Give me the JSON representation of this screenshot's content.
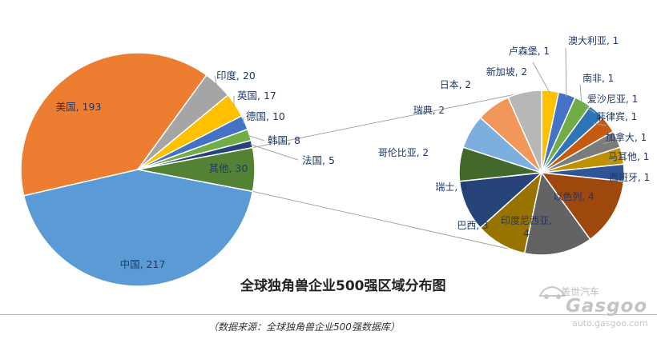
{
  "chart_data": [
    {
      "type": "pie",
      "title": "全球独角兽企业500强区域分布图",
      "labels": [
        "中国",
        "美国",
        "印度",
        "英国",
        "德国",
        "韩国",
        "法国",
        "其他"
      ],
      "values": [
        217,
        193,
        20,
        17,
        10,
        8,
        5,
        30
      ],
      "colors": [
        "#5b9bd5",
        "#ed7d31",
        "#a5a5a5",
        "#ffc000",
        "#4472c4",
        "#70ad47",
        "#264478",
        "#548235"
      ],
      "label_text": [
        "中国, 217",
        "美国, 193",
        "印度, 20",
        "英国, 17",
        "德国, 10",
        "韩国, 8",
        "法国, 5",
        "其他, 30"
      ]
    },
    {
      "type": "pie",
      "title": "",
      "labels": [
        "卢森堡",
        "澳大利亚",
        "南非",
        "爱沙尼亚",
        "菲律宾",
        "加拿大",
        "马耳他",
        "西班牙",
        "以色列",
        "印度尼西亚",
        "巴西",
        "瑞士",
        "哥伦比亚",
        "瑞典",
        "日本",
        "新加坡"
      ],
      "values": [
        1,
        1,
        1,
        1,
        1,
        1,
        1,
        1,
        4,
        4,
        3,
        3,
        2,
        2,
        2,
        2
      ],
      "colors": [
        "#ffc000",
        "#4472c4",
        "#70ad47",
        "#2e75b6",
        "#c55a11",
        "#7b7b7b",
        "#bf9000",
        "#2f5597",
        "#9e480e",
        "#636363",
        "#997300",
        "#264478",
        "#43682b",
        "#7cafdd",
        "#f1975a",
        "#b7b7b7"
      ],
      "label_text": [
        "卢森堡, 1",
        "澳大利亚, 1",
        "南非, 1",
        "爱沙尼亚, 1",
        "菲律宾, 1",
        "加拿大, 1",
        "马耳他, 1",
        "西班牙, 1",
        "以色列, 4",
        "印度尼西亚, 4",
        "巴西, 3",
        "瑞士, 3",
        "哥伦比亚, 2",
        "瑞典, 2",
        "日本, 2",
        "新加坡, 2"
      ]
    }
  ],
  "title": "全球独角兽企业500强区域分布图",
  "source": "（数据来源：全球独角兽企业500强数据库）",
  "watermark": {
    "brand": "盖世汽车",
    "logo": "Gasgoo",
    "url": "auto.gasgoo.com"
  }
}
